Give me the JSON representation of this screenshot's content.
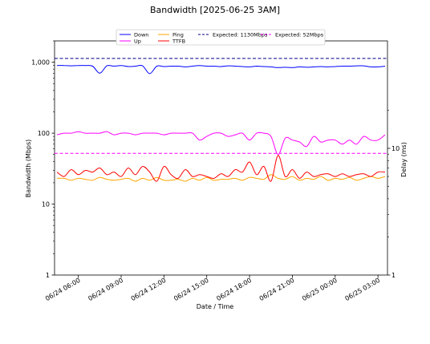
{
  "chart_data": {
    "type": "line",
    "title": "Bandwidth [2025-06-25 3AM]",
    "xlabel": "Date / Time",
    "ylabel": "Bandwidth (Mbps)",
    "ylabel_right": "Delay (ms)",
    "y_scale": "log",
    "ylim": [
      1,
      2000
    ],
    "y_ticks": [
      1,
      10,
      100,
      1000
    ],
    "y_tick_labels": [
      "1",
      "10",
      "100",
      "1,000"
    ],
    "y_right_ticks": [
      1,
      10
    ],
    "y_right_tick_labels": [
      "1",
      "10"
    ],
    "xlim": [
      "2025-06-24 04:20",
      "2025-06-25 03:40"
    ],
    "x_ticks": [
      "2025-06-24 06:00",
      "2025-06-24 09:00",
      "2025-06-24 12:00",
      "2025-06-24 15:00",
      "2025-06-24 18:00",
      "2025-06-24 21:00",
      "2025-06-25 00:00",
      "2025-06-25 03:00"
    ],
    "x_tick_labels": [
      "06/24 06:00",
      "06/24 09:00",
      "06/24 12:00",
      "06/24 15:00",
      "06/24 18:00",
      "06/24 21:00",
      "06/25 00:00",
      "06/25 03:00"
    ],
    "legend": {
      "placement": "top",
      "entries": [
        {
          "label": "Down",
          "color": "#0000ff",
          "style": "solid"
        },
        {
          "label": "Up",
          "color": "#ff00ff",
          "style": "solid"
        },
        {
          "label": "Ping",
          "color": "#ffa500",
          "style": "solid"
        },
        {
          "label": "TTFB",
          "color": "#ff0000",
          "style": "solid"
        },
        {
          "label": "Expected: 1130Mbps",
          "color": "#00008b",
          "style": "dashed"
        },
        {
          "label": "Expected: 52Mbps",
          "color": "#ff00ff",
          "style": "dashed"
        }
      ]
    },
    "grid": false,
    "x_times": [
      "2025-06-24 04:30",
      "2025-06-24 05:00",
      "2025-06-24 05:30",
      "2025-06-24 06:00",
      "2025-06-24 06:30",
      "2025-06-24 07:00",
      "2025-06-24 07:30",
      "2025-06-24 08:00",
      "2025-06-24 08:30",
      "2025-06-24 09:00",
      "2025-06-24 09:30",
      "2025-06-24 10:00",
      "2025-06-24 10:30",
      "2025-06-24 11:00",
      "2025-06-24 11:30",
      "2025-06-24 12:00",
      "2025-06-24 12:30",
      "2025-06-24 13:00",
      "2025-06-24 13:30",
      "2025-06-24 14:00",
      "2025-06-24 14:30",
      "2025-06-24 15:00",
      "2025-06-24 15:30",
      "2025-06-24 16:00",
      "2025-06-24 16:30",
      "2025-06-24 17:00",
      "2025-06-24 17:30",
      "2025-06-24 18:00",
      "2025-06-24 18:30",
      "2025-06-24 19:00",
      "2025-06-24 19:30",
      "2025-06-24 20:00",
      "2025-06-24 20:30",
      "2025-06-24 21:00",
      "2025-06-24 21:30",
      "2025-06-24 22:00",
      "2025-06-24 22:30",
      "2025-06-24 23:00",
      "2025-06-24 23:30",
      "2025-06-25 00:00",
      "2025-06-25 00:30",
      "2025-06-25 01:00",
      "2025-06-25 01:30",
      "2025-06-25 02:00",
      "2025-06-25 02:30",
      "2025-06-25 03:00",
      "2025-06-25 03:30"
    ],
    "series": [
      {
        "name": "Down",
        "axis": "left",
        "color": "#0000ff",
        "values": [
          900,
          900,
          890,
          900,
          900,
          880,
          700,
          890,
          880,
          900,
          870,
          880,
          890,
          690,
          880,
          870,
          880,
          880,
          860,
          880,
          900,
          880,
          880,
          870,
          890,
          880,
          870,
          860,
          880,
          870,
          860,
          840,
          850,
          840,
          860,
          850,
          860,
          870,
          860,
          870,
          880,
          880,
          890,
          890,
          860,
          860,
          880
        ]
      },
      {
        "name": "Up",
        "axis": "left",
        "color": "#ff00ff",
        "values": [
          95,
          100,
          100,
          105,
          100,
          100,
          100,
          105,
          95,
          100,
          100,
          95,
          100,
          100,
          100,
          95,
          100,
          100,
          100,
          100,
          80,
          90,
          100,
          100,
          90,
          95,
          100,
          80,
          100,
          100,
          90,
          50,
          85,
          80,
          75,
          65,
          90,
          75,
          80,
          80,
          70,
          80,
          70,
          90,
          80,
          80,
          95
        ]
      },
      {
        "name": "Ping",
        "axis": "right",
        "color": "#ffa500",
        "values": [
          5.8,
          5.8,
          5.6,
          5.8,
          5.7,
          5.6,
          5.9,
          5.7,
          5.6,
          5.7,
          5.8,
          5.5,
          5.8,
          5.6,
          5.9,
          5.6,
          5.6,
          5.7,
          5.5,
          5.8,
          5.6,
          5.9,
          5.6,
          5.7,
          5.7,
          5.8,
          5.6,
          5.9,
          5.8,
          5.7,
          6.2,
          5.8,
          5.7,
          6.0,
          5.6,
          5.8,
          5.7,
          6.0,
          5.6,
          5.8,
          5.7,
          5.9,
          5.6,
          5.8,
          6.0,
          5.8,
          6.0
        ]
      },
      {
        "name": "TTFB",
        "axis": "right",
        "color": "#ff0000",
        "values": [
          6.5,
          6.0,
          6.8,
          6.2,
          6.7,
          6.5,
          7.0,
          6.2,
          6.5,
          6.0,
          7.0,
          6.2,
          7.2,
          6.5,
          5.5,
          7.2,
          6.2,
          5.8,
          6.8,
          6.0,
          6.2,
          6.0,
          5.8,
          6.3,
          6.0,
          6.8,
          6.5,
          7.8,
          6.2,
          7.2,
          5.5,
          8.8,
          6.0,
          6.8,
          5.8,
          6.5,
          6.0,
          6.2,
          6.3,
          6.0,
          6.3,
          6.0,
          6.2,
          6.3,
          6.0,
          6.5,
          6.5
        ]
      },
      {
        "name": "Expected: 1130Mbps",
        "axis": "left",
        "color": "#00008b",
        "dashed": true,
        "constant": 1130
      },
      {
        "name": "Expected: 52Mbps",
        "axis": "left",
        "color": "#ff00ff",
        "dashed": true,
        "constant": 52
      }
    ]
  }
}
